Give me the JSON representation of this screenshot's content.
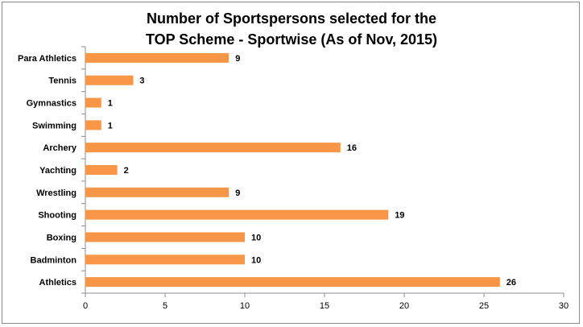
{
  "chart_data": {
    "type": "bar",
    "orientation": "horizontal",
    "title_lines": [
      "Number of Sportspersons selected for the",
      "TOP Scheme - Sportwise (As of Nov, 2015)"
    ],
    "categories": [
      "Para Athletics",
      "Tennis",
      "Gymnastics",
      "Swimming",
      "Archery",
      "Yachting",
      "Wrestling",
      "Shooting",
      "Boxing",
      "Badminton",
      "Athletics"
    ],
    "values": [
      9,
      3,
      1,
      1,
      16,
      2,
      9,
      19,
      10,
      10,
      26
    ],
    "xlim": [
      0,
      30
    ],
    "xticks": [
      0,
      5,
      10,
      15,
      20,
      25,
      30
    ],
    "grid": false,
    "legend": "none",
    "bar_color": "#f79646"
  }
}
